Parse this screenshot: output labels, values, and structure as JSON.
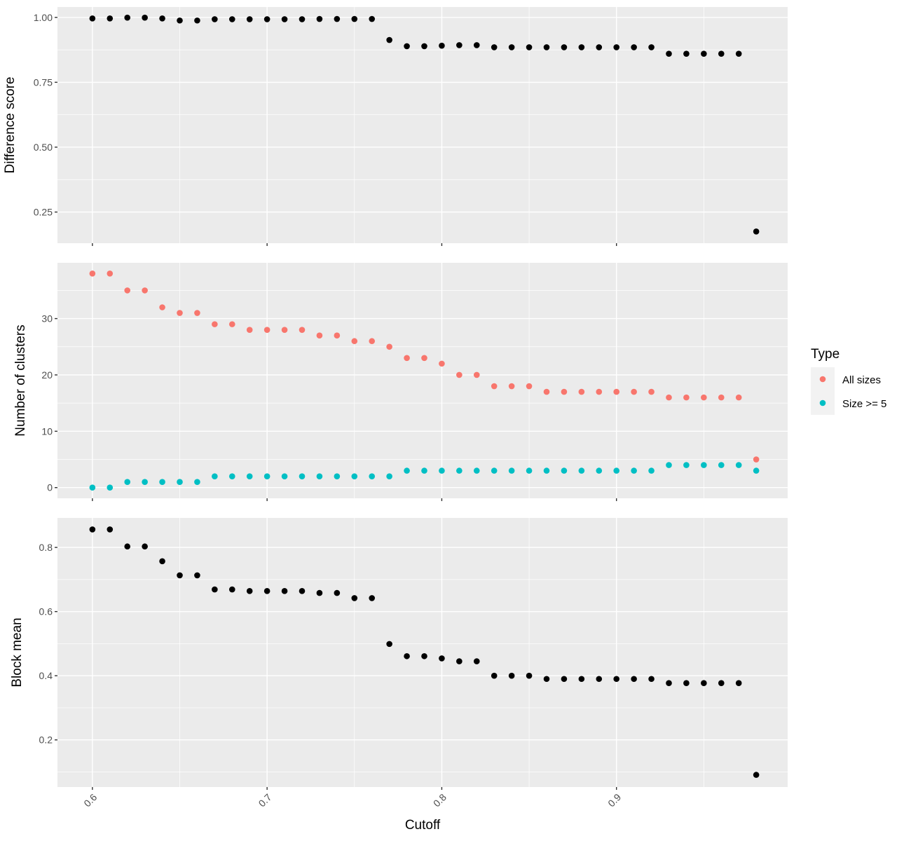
{
  "chart_data": [
    {
      "type": "scatter",
      "ylabel": "Difference score",
      "xlabel": "",
      "xlim": [
        0.58,
        0.998
      ],
      "ylim": [
        0.13,
        1.04
      ],
      "x_major_ticks": [
        0.6,
        0.7,
        0.8,
        0.9
      ],
      "x_minor_ticks": [
        0.65,
        0.75,
        0.85,
        0.95
      ],
      "y_major_ticks": [
        0.25,
        0.5,
        0.75,
        1.0
      ],
      "y_minor_ticks": [
        0.375,
        0.625,
        0.875
      ],
      "y_tick_labels": [
        "0.25",
        "0.50",
        "0.75",
        "1.00"
      ],
      "grid": true,
      "x_tick_labels_visible": false,
      "series": [
        {
          "color": "#000000",
          "x": [
            0.6,
            0.61,
            0.62,
            0.63,
            0.64,
            0.65,
            0.66,
            0.67,
            0.68,
            0.69,
            0.7,
            0.71,
            0.72,
            0.73,
            0.74,
            0.75,
            0.76,
            0.77,
            0.78,
            0.79,
            0.8,
            0.81,
            0.82,
            0.83,
            0.84,
            0.85,
            0.86,
            0.87,
            0.88,
            0.89,
            0.9,
            0.91,
            0.92,
            0.93,
            0.94,
            0.95,
            0.96,
            0.97,
            0.98
          ],
          "y": [
            0.996,
            0.996,
            0.999,
            0.999,
            0.996,
            0.988,
            0.988,
            0.993,
            0.993,
            0.993,
            0.993,
            0.993,
            0.993,
            0.994,
            0.994,
            0.994,
            0.994,
            0.913,
            0.889,
            0.889,
            0.891,
            0.893,
            0.893,
            0.885,
            0.885,
            0.885,
            0.885,
            0.885,
            0.885,
            0.885,
            0.885,
            0.885,
            0.885,
            0.86,
            0.86,
            0.86,
            0.86,
            0.86,
            0.175
          ]
        }
      ]
    },
    {
      "type": "scatter",
      "ylabel": "Number of clusters",
      "xlabel": "",
      "xlim": [
        0.58,
        0.998
      ],
      "ylim": [
        -1.9,
        39.9
      ],
      "x_major_ticks": [
        0.6,
        0.7,
        0.8,
        0.9
      ],
      "x_minor_ticks": [
        0.65,
        0.75,
        0.85,
        0.95
      ],
      "y_major_ticks": [
        0,
        10,
        20,
        30
      ],
      "y_minor_ticks": [
        5,
        15,
        25,
        35
      ],
      "y_tick_labels": [
        "0",
        "10",
        "20",
        "30"
      ],
      "grid": true,
      "x_tick_labels_visible": false,
      "series": [
        {
          "name": "All sizes",
          "color": "#F8766D",
          "x": [
            0.6,
            0.61,
            0.62,
            0.63,
            0.64,
            0.65,
            0.66,
            0.67,
            0.68,
            0.69,
            0.7,
            0.71,
            0.72,
            0.73,
            0.74,
            0.75,
            0.76,
            0.77,
            0.78,
            0.79,
            0.8,
            0.81,
            0.82,
            0.83,
            0.84,
            0.85,
            0.86,
            0.87,
            0.88,
            0.89,
            0.9,
            0.91,
            0.92,
            0.93,
            0.94,
            0.95,
            0.96,
            0.97,
            0.98
          ],
          "y": [
            38,
            38,
            35,
            35,
            32,
            31,
            31,
            29,
            29,
            28,
            28,
            28,
            28,
            27,
            27,
            26,
            26,
            25,
            23,
            23,
            22,
            20,
            20,
            18,
            18,
            18,
            17,
            17,
            17,
            17,
            17,
            17,
            17,
            16,
            16,
            16,
            16,
            16,
            5
          ]
        },
        {
          "name": "Size >= 5",
          "color": "#00BFC4",
          "x": [
            0.6,
            0.61,
            0.62,
            0.63,
            0.64,
            0.65,
            0.66,
            0.67,
            0.68,
            0.69,
            0.7,
            0.71,
            0.72,
            0.73,
            0.74,
            0.75,
            0.76,
            0.77,
            0.78,
            0.79,
            0.8,
            0.81,
            0.82,
            0.83,
            0.84,
            0.85,
            0.86,
            0.87,
            0.88,
            0.89,
            0.9,
            0.91,
            0.92,
            0.93,
            0.94,
            0.95,
            0.96,
            0.97,
            0.98
          ],
          "y": [
            0,
            0,
            1,
            1,
            1,
            1,
            1,
            2,
            2,
            2,
            2,
            2,
            2,
            2,
            2,
            2,
            2,
            2,
            3,
            3,
            3,
            3,
            3,
            3,
            3,
            3,
            3,
            3,
            3,
            3,
            3,
            3,
            3,
            4,
            4,
            4,
            4,
            4,
            3
          ]
        }
      ]
    },
    {
      "type": "scatter",
      "ylabel": "Block mean",
      "xlabel": "Cutoff",
      "xlim": [
        0.58,
        0.998
      ],
      "ylim": [
        0.053,
        0.892
      ],
      "x_major_ticks": [
        0.6,
        0.7,
        0.8,
        0.9
      ],
      "x_minor_ticks": [
        0.65,
        0.75,
        0.85,
        0.95
      ],
      "x_tick_labels": [
        "0.6",
        "0.7",
        "0.8",
        "0.9"
      ],
      "y_major_ticks": [
        0.2,
        0.4,
        0.6,
        0.8
      ],
      "y_minor_ticks": [
        0.1,
        0.3,
        0.5,
        0.7
      ],
      "y_tick_labels": [
        "0.2",
        "0.4",
        "0.6",
        "0.8"
      ],
      "grid": true,
      "x_tick_labels_visible": true,
      "series": [
        {
          "color": "#000000",
          "x": [
            0.6,
            0.61,
            0.62,
            0.63,
            0.64,
            0.65,
            0.66,
            0.67,
            0.68,
            0.69,
            0.7,
            0.71,
            0.72,
            0.73,
            0.74,
            0.75,
            0.76,
            0.77,
            0.78,
            0.79,
            0.8,
            0.81,
            0.82,
            0.83,
            0.84,
            0.85,
            0.86,
            0.87,
            0.88,
            0.89,
            0.9,
            0.91,
            0.92,
            0.93,
            0.94,
            0.95,
            0.96,
            0.97,
            0.98
          ],
          "y": [
            0.856,
            0.856,
            0.803,
            0.803,
            0.757,
            0.713,
            0.713,
            0.669,
            0.669,
            0.664,
            0.664,
            0.664,
            0.664,
            0.658,
            0.658,
            0.642,
            0.642,
            0.499,
            0.461,
            0.461,
            0.454,
            0.445,
            0.445,
            0.4,
            0.4,
            0.4,
            0.39,
            0.39,
            0.39,
            0.39,
            0.39,
            0.39,
            0.39,
            0.377,
            0.377,
            0.377,
            0.377,
            0.377,
            0.091
          ]
        }
      ]
    }
  ],
  "legend": {
    "title": "Type",
    "placement": "right",
    "items": [
      {
        "label": "All sizes",
        "color": "#F8766D"
      },
      {
        "label": "Size >= 5",
        "color": "#00BFC4"
      }
    ]
  }
}
